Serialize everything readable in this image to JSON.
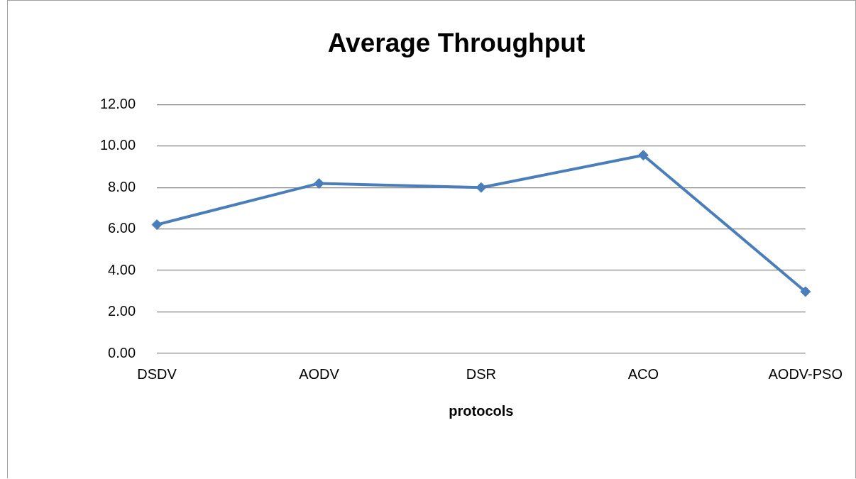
{
  "chart_data": {
    "type": "line",
    "title": "Average Throughput",
    "xlabel": "protocols",
    "categories": [
      "DSDV",
      "AODV",
      "DSR",
      "ACO",
      "AODV-PSO"
    ],
    "series": [
      {
        "color": "#4a7ebb",
        "values": [
          6.21,
          8.2,
          8.0,
          9.56,
          2.98
        ]
      }
    ],
    "ylim": [
      0,
      12
    ],
    "yticks": [
      {
        "value": 0,
        "label": "0.00"
      },
      {
        "value": 2,
        "label": "2.00"
      },
      {
        "value": 4,
        "label": "4.00"
      },
      {
        "value": 6,
        "label": "6.00"
      },
      {
        "value": 8,
        "label": "8.00"
      },
      {
        "value": 10,
        "label": "10.00"
      },
      {
        "value": 12,
        "label": "12.00"
      }
    ],
    "grid": "y",
    "legend": false,
    "marker": "diamond",
    "line_style": "solid"
  }
}
